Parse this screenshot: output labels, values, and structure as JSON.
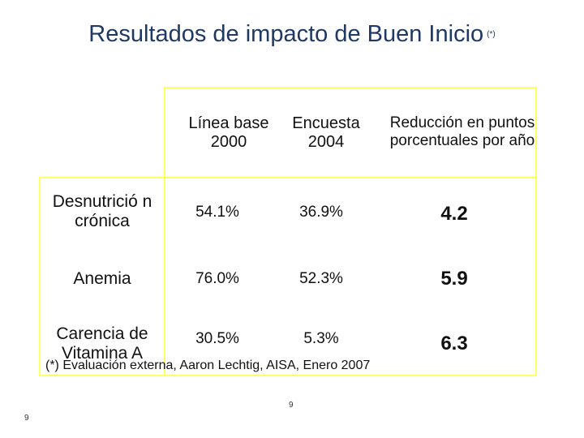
{
  "title": {
    "text": "Resultados de impacto de Buen Inicio",
    "note": "(*)"
  },
  "table": {
    "headers": [
      "Línea base 2000",
      "Encuesta 2004",
      "Reducción en puntos porcentuales por año"
    ],
    "rows": [
      {
        "label": "Desnutrició n crónica",
        "base": "54.1%",
        "encuesta": "36.9%",
        "reduccion": "4.2"
      },
      {
        "label": "Anemia",
        "base": "76.0%",
        "encuesta": "52.3%",
        "reduccion": "5.9"
      },
      {
        "label": "Carencia de Vitamina A",
        "base": "30.5%",
        "encuesta": "5.3%",
        "reduccion": "6.3"
      }
    ]
  },
  "footnote": "(*) Evaluación externa, Aaron Lechtig, AISA, Enero 2007",
  "page_number_center": "9",
  "page_number_left": "9"
}
